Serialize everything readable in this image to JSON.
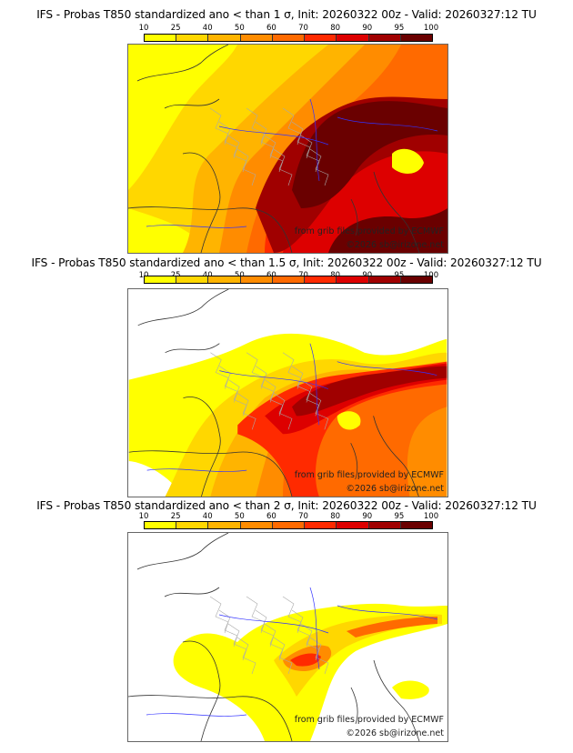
{
  "colorbar": {
    "ticks": [
      "10",
      "25",
      "40",
      "50",
      "60",
      "70",
      "80",
      "90",
      "95",
      "100"
    ],
    "colors": [
      "#ffff00",
      "#ffd700",
      "#ffb400",
      "#ff8c00",
      "#ff6a00",
      "#ff2a00",
      "#dd0000",
      "#a00000",
      "#6a0000"
    ]
  },
  "panels": [
    {
      "title": "IFS - Probas T850  standardized ano < than 1 σ, Init: 20260322 00z - Valid: 20260327:12 TU",
      "threshold_sigma": 1,
      "credit_line1": "from grib files provided by ECMWF",
      "credit_line2": "©2026 sb@irizone.net"
    },
    {
      "title": "IFS - Probas T850  standardized ano < than 1.5 σ, Init: 20260322 00z - Valid: 20260327:12 TU",
      "threshold_sigma": 1.5,
      "credit_line1": "from grib files provided by ECMWF",
      "credit_line2": "©2026 sb@irizone.net"
    },
    {
      "title": "IFS - Probas T850  standardized ano < than 2 σ, Init: 20260322 00z - Valid: 20260327:12 TU",
      "threshold_sigma": 2,
      "credit_line1": "from grib files provided by ECMWF",
      "credit_line2": "©2026 sb@irizone.net"
    }
  ]
}
